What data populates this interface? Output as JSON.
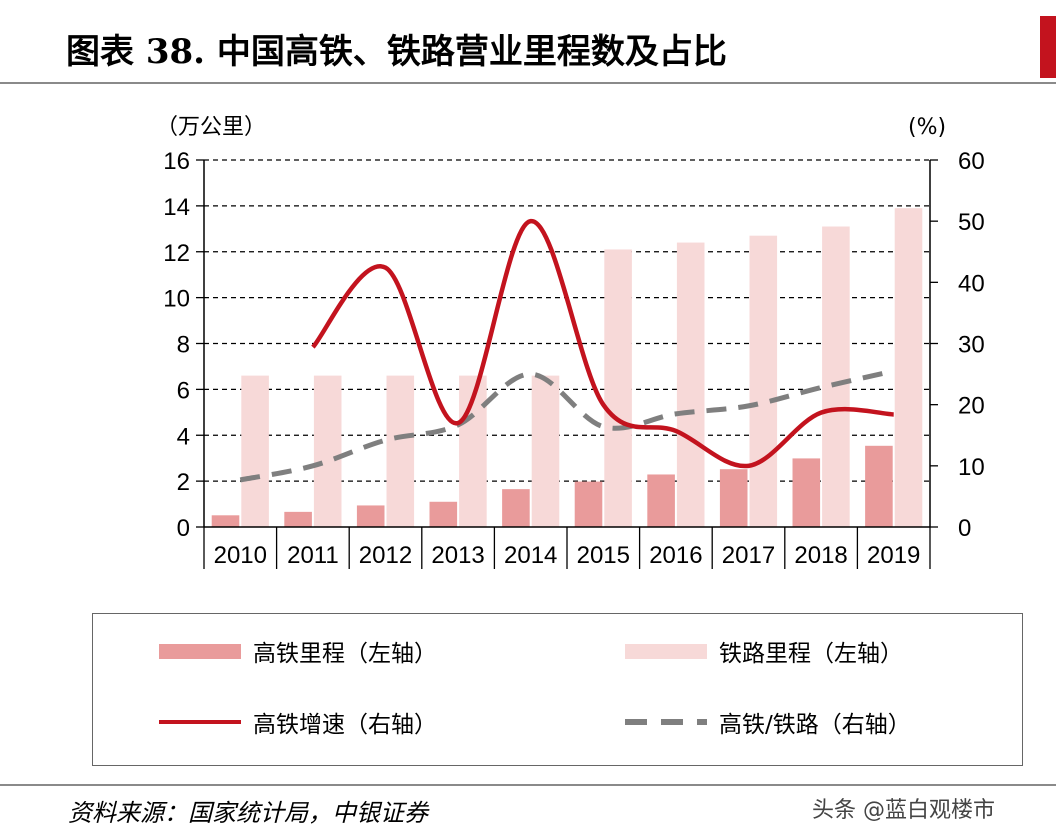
{
  "title": "图表 38. 中国高铁、铁路营业里程数及占比",
  "source": "资料来源：国家统计局，中银证券",
  "watermark": "头条 @蓝白观楼市",
  "colors": {
    "hsr_bar": "#e99b9b",
    "rail_bar": "#f7d9d8",
    "growth_line": "#c3131e",
    "share_line": "#7f7f7f",
    "accent": "#c3131e"
  },
  "chart_data": {
    "type": "bar",
    "categories": [
      "2010",
      "2011",
      "2012",
      "2013",
      "2014",
      "2015",
      "2016",
      "2017",
      "2018",
      "2019"
    ],
    "y_left_label": "（万公里）",
    "y_right_label": "(%)",
    "y_left_ticks": [
      "0",
      "2",
      "4",
      "6",
      "8",
      "10",
      "12",
      "14",
      "16"
    ],
    "y_right_ticks": [
      "0",
      "10",
      "20",
      "30",
      "40",
      "50",
      "60"
    ],
    "ylim_left": [
      0,
      16
    ],
    "ylim_right": [
      0,
      60
    ],
    "grid": "dashed horizontal",
    "legend_position": "bottom",
    "series": [
      {
        "name": "高铁里程（左轴）",
        "type": "bar",
        "axis": "left",
        "values": [
          0.51,
          0.66,
          0.94,
          1.1,
          1.65,
          1.98,
          2.29,
          2.52,
          2.99,
          3.54
        ]
      },
      {
        "name": "铁路里程（左轴）",
        "type": "bar",
        "axis": "left",
        "values": [
          6.6,
          6.6,
          6.6,
          6.6,
          6.6,
          12.1,
          12.4,
          12.7,
          13.1,
          13.9
        ]
      },
      {
        "name": "高铁增速（右轴）",
        "type": "line",
        "axis": "right",
        "values": [
          null,
          29.4,
          42.4,
          17.0,
          50.0,
          20.0,
          15.7,
          10.0,
          18.7,
          18.4
        ]
      },
      {
        "name": "高铁/铁路（右轴）",
        "type": "line",
        "axis": "right",
        "style": "dashed",
        "values": [
          7.7,
          10.0,
          14.2,
          16.7,
          25.0,
          16.4,
          18.5,
          19.8,
          22.8,
          25.5
        ]
      }
    ]
  }
}
